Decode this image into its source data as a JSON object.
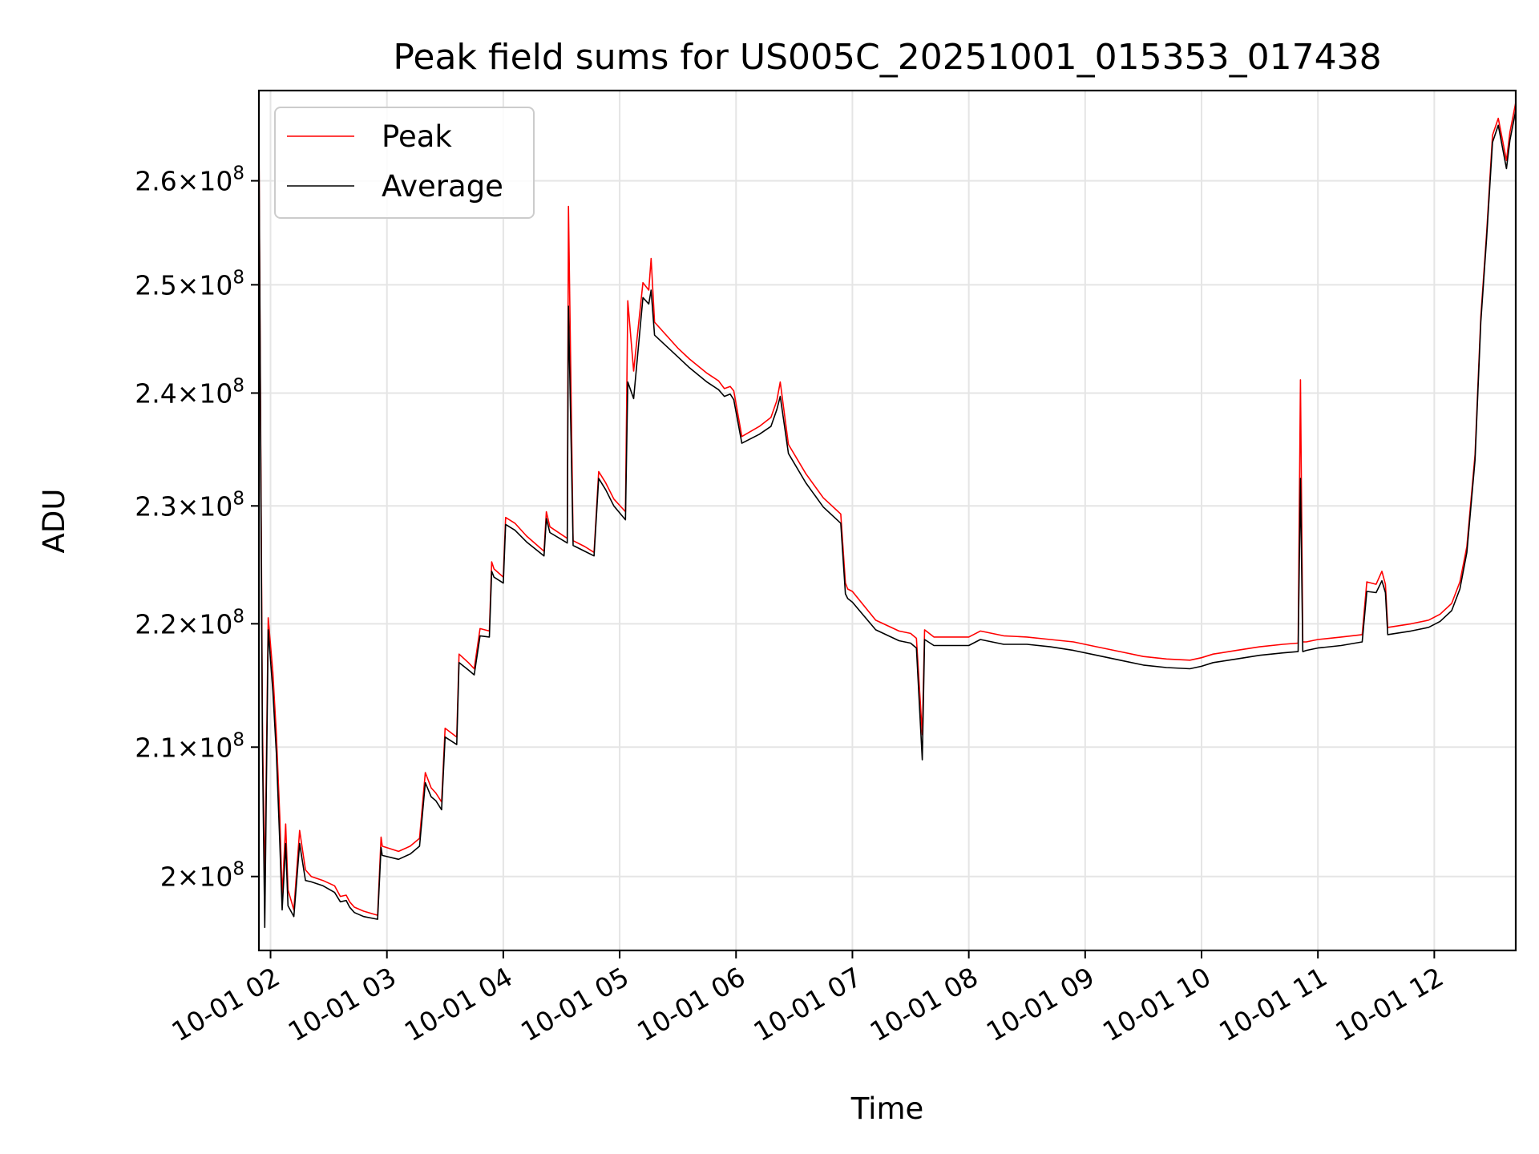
{
  "chart_data": {
    "type": "line",
    "title": "Peak field sums for US005C_20251001_015353_017438",
    "xlabel": "Time",
    "ylabel": "ADU",
    "x_unit": "hours (10-01)",
    "xlim": [
      1.9,
      12.7
    ],
    "ylim": [
      194500000.0,
      269000000.0
    ],
    "yscale": "log",
    "grid": true,
    "legend_position": "top-left",
    "x_ticks": [
      {
        "value": 2,
        "label": "10-01 02"
      },
      {
        "value": 3,
        "label": "10-01 03"
      },
      {
        "value": 4,
        "label": "10-01 04"
      },
      {
        "value": 5,
        "label": "10-01 05"
      },
      {
        "value": 6,
        "label": "10-01 06"
      },
      {
        "value": 7,
        "label": "10-01 07"
      },
      {
        "value": 8,
        "label": "10-01 08"
      },
      {
        "value": 9,
        "label": "10-01 09"
      },
      {
        "value": 10,
        "label": "10-01 10"
      },
      {
        "value": 11,
        "label": "10-01 11"
      },
      {
        "value": 12,
        "label": "10-01 12"
      }
    ],
    "y_ticks": [
      {
        "value": 200000000,
        "mantissa": "2",
        "exponent": "8"
      },
      {
        "value": 210000000,
        "mantissa": "2.1",
        "exponent": "8"
      },
      {
        "value": 220000000,
        "mantissa": "2.2",
        "exponent": "8"
      },
      {
        "value": 230000000,
        "mantissa": "2.3",
        "exponent": "8"
      },
      {
        "value": 240000000,
        "mantissa": "2.4",
        "exponent": "8"
      },
      {
        "value": 250000000,
        "mantissa": "2.5",
        "exponent": "8"
      },
      {
        "value": 260000000,
        "mantissa": "2.6",
        "exponent": "8"
      }
    ],
    "series": [
      {
        "name": "Peak",
        "color": "#ff0000",
        "x": [
          1.9,
          1.93,
          1.95,
          1.98,
          2.02,
          2.05,
          2.08,
          2.1,
          2.13,
          2.15,
          2.2,
          2.25,
          2.3,
          2.35,
          2.45,
          2.55,
          2.6,
          2.65,
          2.68,
          2.72,
          2.8,
          2.92,
          2.95,
          2.96,
          3.1,
          3.2,
          3.28,
          3.33,
          3.38,
          3.42,
          3.47,
          3.5,
          3.6,
          3.62,
          3.7,
          3.75,
          3.8,
          3.88,
          3.9,
          3.92,
          4.0,
          4.02,
          4.1,
          4.2,
          4.35,
          4.37,
          4.4,
          4.55,
          4.56,
          4.6,
          4.7,
          4.78,
          4.82,
          4.88,
          4.95,
          5.05,
          5.07,
          5.12,
          5.2,
          5.25,
          5.27,
          5.3,
          5.5,
          5.6,
          5.75,
          5.85,
          5.9,
          5.95,
          5.98,
          6.05,
          6.2,
          6.3,
          6.35,
          6.38,
          6.45,
          6.6,
          6.75,
          6.9,
          6.94,
          6.96,
          7.0,
          7.2,
          7.4,
          7.5,
          7.55,
          7.6,
          7.62,
          7.7,
          8.0,
          8.1,
          8.3,
          8.5,
          8.7,
          8.9,
          9.1,
          9.3,
          9.5,
          9.7,
          9.9,
          10.0,
          10.1,
          10.3,
          10.5,
          10.7,
          10.83,
          10.85,
          10.87,
          10.9,
          11.0,
          11.2,
          11.38,
          11.42,
          11.5,
          11.55,
          11.58,
          11.6,
          11.8,
          11.95,
          12.05,
          12.15,
          12.22,
          12.28,
          12.35,
          12.4,
          12.45,
          12.5,
          12.55,
          12.62,
          12.65,
          12.7
        ],
        "values": [
          264500000,
          212000000,
          199000000,
          220500000,
          216000000,
          211000000,
          204500000,
          198500000,
          204000000,
          199000000,
          197500000,
          203500000,
          200500000,
          200000000,
          199700000,
          199300000,
          198500000,
          198600000,
          198100000,
          197700000,
          197400000,
          197100000,
          203000000,
          202300000,
          201900000,
          202300000,
          202900000,
          208000000,
          206800000,
          206400000,
          205700000,
          211500000,
          210800000,
          217500000,
          216800000,
          216300000,
          219600000,
          219400000,
          225200000,
          224600000,
          223900000,
          229000000,
          228500000,
          227400000,
          226100000,
          229500000,
          228200000,
          227200000,
          257500000,
          227000000,
          226500000,
          226000000,
          233000000,
          232000000,
          230600000,
          229500000,
          248500000,
          242000000,
          250200000,
          249500000,
          252500000,
          246500000,
          244100000,
          243100000,
          241800000,
          241100000,
          240400000,
          240600000,
          240200000,
          236100000,
          237000000,
          237800000,
          239300000,
          241000000,
          235400000,
          232800000,
          230700000,
          229300000,
          223400000,
          222900000,
          222700000,
          220300000,
          219400000,
          219200000,
          218800000,
          211000000,
          219500000,
          218900000,
          218900000,
          219400000,
          219000000,
          218900000,
          218700000,
          218500000,
          218100000,
          217700000,
          217300000,
          217100000,
          217000000,
          217200000,
          217500000,
          217800000,
          218100000,
          218300000,
          218400000,
          241200000,
          218500000,
          218500000,
          218700000,
          218900000,
          219100000,
          223500000,
          223300000,
          224400000,
          223300000,
          219700000,
          220000000,
          220300000,
          220800000,
          221700000,
          223500000,
          226500000,
          234500000,
          247000000,
          255000000,
          264500000,
          266200000,
          262000000,
          264800000,
          267800000
        ]
      },
      {
        "name": "Average",
        "color": "#000000",
        "x": [
          1.9,
          1.93,
          1.95,
          1.98,
          2.02,
          2.05,
          2.08,
          2.1,
          2.13,
          2.15,
          2.2,
          2.25,
          2.3,
          2.35,
          2.45,
          2.55,
          2.6,
          2.65,
          2.68,
          2.72,
          2.8,
          2.92,
          2.95,
          2.96,
          3.1,
          3.2,
          3.28,
          3.33,
          3.38,
          3.42,
          3.47,
          3.5,
          3.6,
          3.62,
          3.7,
          3.75,
          3.8,
          3.88,
          3.9,
          3.92,
          4.0,
          4.02,
          4.1,
          4.2,
          4.35,
          4.37,
          4.4,
          4.55,
          4.56,
          4.6,
          4.7,
          4.78,
          4.82,
          4.88,
          4.95,
          5.05,
          5.07,
          5.12,
          5.2,
          5.25,
          5.27,
          5.3,
          5.5,
          5.6,
          5.75,
          5.85,
          5.9,
          5.95,
          5.98,
          6.05,
          6.2,
          6.3,
          6.35,
          6.38,
          6.45,
          6.6,
          6.75,
          6.9,
          6.94,
          6.96,
          7.0,
          7.2,
          7.4,
          7.5,
          7.55,
          7.6,
          7.62,
          7.7,
          8.0,
          8.1,
          8.3,
          8.5,
          8.7,
          8.9,
          9.1,
          9.3,
          9.5,
          9.7,
          9.9,
          10.0,
          10.1,
          10.3,
          10.5,
          10.7,
          10.83,
          10.85,
          10.87,
          10.9,
          11.0,
          11.2,
          11.38,
          11.42,
          11.5,
          11.55,
          11.58,
          11.6,
          11.8,
          11.95,
          12.05,
          12.15,
          12.22,
          12.28,
          12.35,
          12.4,
          12.45,
          12.5,
          12.55,
          12.62,
          12.65,
          12.7
        ],
        "values": [
          264000000,
          210000000,
          196200000,
          219500000,
          214500000,
          209500000,
          202500000,
          197500000,
          202500000,
          197800000,
          197000000,
          202500000,
          199700000,
          199600000,
          199300000,
          198800000,
          198100000,
          198200000,
          197700000,
          197300000,
          197000000,
          196800000,
          202200000,
          201600000,
          201300000,
          201700000,
          202300000,
          207200000,
          206100000,
          205800000,
          205100000,
          210800000,
          210200000,
          216800000,
          216200000,
          215800000,
          219000000,
          218900000,
          224400000,
          223900000,
          223400000,
          228400000,
          227900000,
          226900000,
          225700000,
          228900000,
          227700000,
          226800000,
          248000000,
          226600000,
          226100000,
          225700000,
          232400000,
          231400000,
          230000000,
          228800000,
          241000000,
          239500000,
          248800000,
          248200000,
          249500000,
          245300000,
          243300000,
          242300000,
          241000000,
          240300000,
          239700000,
          239900000,
          239400000,
          235500000,
          236300000,
          237000000,
          238500000,
          239700000,
          234600000,
          232000000,
          229900000,
          228500000,
          222500000,
          222100000,
          221800000,
          219500000,
          218600000,
          218400000,
          218000000,
          209000000,
          218700000,
          218200000,
          218200000,
          218700000,
          218300000,
          218300000,
          218100000,
          217800000,
          217400000,
          217000000,
          216600000,
          216400000,
          216300000,
          216500000,
          216800000,
          217100000,
          217400000,
          217600000,
          217700000,
          232400000,
          217700000,
          217800000,
          218000000,
          218200000,
          218500000,
          222700000,
          222600000,
          223600000,
          222600000,
          219100000,
          219400000,
          219700000,
          220200000,
          221100000,
          222900000,
          226000000,
          234000000,
          246500000,
          254500000,
          263800000,
          265500000,
          261200000,
          264000000,
          267000000
        ]
      }
    ]
  }
}
